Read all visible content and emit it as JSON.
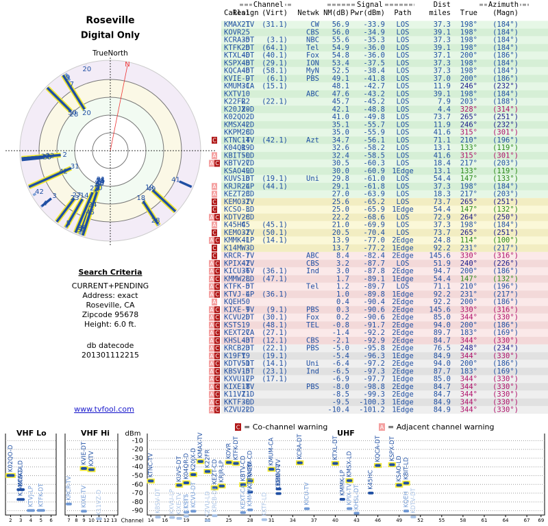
{
  "header": {
    "title": "Roseville",
    "subtitle": "Digital Only",
    "true_north": "TrueNorth",
    "magnetic_north": "N"
  },
  "criteria": {
    "title": "Search Criteria",
    "lines": [
      "CURRENT+PENDING",
      "Address: exact",
      "Roseville, CA",
      "Zipcode 95678",
      "Height: 6.0 ft."
    ],
    "db_label": "db datecode",
    "db_code": "201301112215",
    "link": "www.tvfool.com"
  },
  "table": {
    "groups": {
      "channel": "Channel",
      "signal": "Signal",
      "dist": "Dist",
      "azimuth": "Azimuth"
    },
    "columns": [
      "Callsign",
      "Real",
      "(Virt)",
      "Netwk",
      "NM(dB)",
      "Pwr(dBm)",
      "Path",
      "miles",
      "True",
      "(Magn)"
    ],
    "rows": [
      [
        "KMAX-TV",
        21,
        "(31.1)",
        "CW",
        "56.9",
        "-33.9",
        "LOS",
        "37.3",
        "198°",
        "(184°)",
        null
      ],
      [
        "KOVR",
        25,
        null,
        "CBS",
        "56.0",
        "-34.9",
        "LOS",
        "39.1",
        "198°",
        "(184°)",
        null
      ],
      [
        "KCRA-DT",
        35,
        "(3.1)",
        "NBC",
        "55.6",
        "-35.3",
        "LOS",
        "37.3",
        "198°",
        "(184°)",
        null
      ],
      [
        "KTFK-DT",
        26,
        "(64.1)",
        "Tel",
        "54.9",
        "-36.0",
        "LOS",
        "39.1",
        "198°",
        "(184°)",
        null
      ],
      [
        "KTXL-DT",
        40,
        "(40.1)",
        "Fox",
        "54.8",
        "-36.0",
        "LOS",
        "37.1",
        "200°",
        "(186°)",
        null
      ],
      [
        "KSPX-DT",
        48,
        "(29.1)",
        "ION",
        "53.4",
        "-37.5",
        "LOS",
        "37.3",
        "198°",
        "(184°)",
        null
      ],
      [
        "KQCA-DT",
        46,
        "(58.1)",
        "MyN",
        "52.5",
        "-38.4",
        "LOS",
        "37.3",
        "198°",
        "(184°)",
        null
      ],
      [
        "KVIE-DT",
        9,
        "(6.1)",
        "PBS",
        "49.1",
        "-41.8",
        "LOS",
        "37.0",
        "200°",
        "(186°)",
        null
      ],
      [
        "KMUM-CA",
        31,
        "(15.1)",
        null,
        "48.1",
        "-42.7",
        "LOS",
        "11.9",
        "246°",
        "(232°)",
        null
      ],
      [
        "KXTV",
        10,
        null,
        "ABC",
        "47.6",
        "-43.2",
        "LOS",
        "39.1",
        "198°",
        "(184°)",
        null
      ],
      [
        "K22FR",
        22,
        "(22.1)",
        null,
        "45.7",
        "-45.2",
        "LOS",
        "7.9",
        "203°",
        "(188°)",
        null
      ],
      [
        "K20JX-D",
        20,
        null,
        null,
        "42.1",
        "-48.8",
        "LOS",
        "4.4",
        "328°",
        "(314°)",
        null
      ],
      [
        "K02QO-D",
        2,
        null,
        null,
        "41.0",
        "-49.8",
        "LOS",
        "73.7",
        "265°",
        "(251°)",
        null
      ],
      [
        "KMSX-LD",
        42,
        null,
        null,
        "35.1",
        "-55.7",
        "LOS",
        "11.9",
        "246°",
        "(232°)",
        null
      ],
      [
        "KKPM-CD",
        28,
        null,
        null,
        "35.0",
        "-55.9",
        "LOS",
        "41.6",
        "315°",
        "(301°)",
        null
      ],
      [
        "KTNC-TV",
        14,
        "(42.1)",
        "Azt",
        "34.7",
        "-56.1",
        "LOS",
        "71.1",
        "210°",
        "(196°)",
        [
          "C"
        ]
      ],
      [
        "K04QR-D",
        19,
        null,
        null,
        "32.6",
        "-58.2",
        "LOS",
        "13.1",
        "133°",
        "(119°)",
        null
      ],
      [
        "KBIT-LD",
        50,
        null,
        null,
        "32.4",
        "-58.5",
        "LOS",
        "41.6",
        "315°",
        "(301°)",
        [
          "A"
        ]
      ],
      [
        "KBTV-CD",
        27,
        null,
        null,
        "30.5",
        "-60.3",
        "LOS",
        "18.4",
        "217°",
        "(203°)",
        [
          "A",
          "C"
        ]
      ],
      [
        "KSAO-LD",
        49,
        null,
        null,
        "30.0",
        "-60.9",
        "1Edge",
        "13.1",
        "133°",
        "(119°)",
        null
      ],
      [
        "KUVS-DT",
        18,
        "(19.1)",
        "Uni",
        "29.8",
        "-61.0",
        "LOS",
        "54.4",
        "147°",
        "(133°)",
        null
      ],
      [
        "KRJR-LP",
        24,
        "(44.1)",
        null,
        "29.1",
        "-61.8",
        "LOS",
        "37.3",
        "198°",
        "(184°)",
        [
          "A"
        ]
      ],
      [
        "KEZT-CD",
        23,
        null,
        null,
        "27.0",
        "-63.9",
        "LOS",
        "18.3",
        "217°",
        "(203°)",
        [
          "A"
        ]
      ],
      [
        "KEMO-TV",
        32,
        null,
        null,
        "25.6",
        "-65.2",
        "LOS",
        "73.7",
        "265°",
        "(251°)",
        [
          "C"
        ]
      ],
      [
        "KCSO-LD",
        3,
        null,
        null,
        "25.0",
        "-65.9",
        "1Edge",
        "54.4",
        "147°",
        "(132°)",
        [
          "C"
        ]
      ],
      [
        "KDTV-CD",
        28,
        null,
        null,
        "22.2",
        "-68.6",
        "LOS",
        "72.9",
        "264°",
        "(250°)",
        [
          "A",
          "C"
        ]
      ],
      [
        "K45HC",
        45,
        "(45.1)",
        null,
        "21.0",
        "-69.9",
        "LOS",
        "37.3",
        "198°",
        "(184°)",
        [
          "A"
        ]
      ],
      [
        "KEMO-TV",
        32,
        "(50.1)",
        null,
        "20.5",
        "-70.4",
        "LOS",
        "73.7",
        "265°",
        "(251°)",
        [
          "C"
        ]
      ],
      [
        "KMMK-LP",
        41,
        "(14.1)",
        null,
        "13.9",
        "-77.0",
        "2Edge",
        "24.8",
        "114°",
        "(100°)",
        [
          "A",
          "C"
        ]
      ],
      [
        "K14MW-D",
        3,
        null,
        null,
        "13.7",
        "-77.2",
        "1Edge",
        "92.2",
        "231°",
        "(217°)",
        [
          "C"
        ]
      ],
      [
        "KRCR-TV",
        7,
        null,
        "ABC",
        "8.4",
        "-82.4",
        "2Edge",
        "145.6",
        "330°",
        "(316°)",
        [
          "C"
        ]
      ],
      [
        "KPIX-TV",
        42,
        null,
        "CBS",
        "3.2",
        "-87.7",
        "LOS",
        "51.9",
        "240°",
        "(226°)",
        [
          "A",
          "C"
        ]
      ],
      [
        "KICU-TV",
        36,
        "(36.1)",
        "Ind",
        "3.0",
        "-87.8",
        "2Edge",
        "94.7",
        "200°",
        "(186°)",
        [
          "A",
          "C"
        ]
      ],
      [
        "KMMW-LD",
        28,
        "(47.1)",
        null,
        "1.7",
        "-89.1",
        "1Edge",
        "54.4",
        "147°",
        "(132°)",
        [
          "A",
          "C"
        ]
      ],
      [
        "KTFK-DT",
        5,
        null,
        "Tel",
        "1.2",
        "-89.7",
        "LOS",
        "71.1",
        "210°",
        "(196°)",
        [
          "A",
          "C"
        ]
      ],
      [
        "KTVJ-LP",
        4,
        "(36.1)",
        null,
        "1.0",
        "-89.8",
        "1Edge",
        "92.2",
        "231°",
        "(217°)",
        [
          "A",
          "C"
        ]
      ],
      [
        "KQEH",
        50,
        null,
        null,
        "0.4",
        "-90.4",
        "2Edge",
        "92.2",
        "200°",
        "(186°)",
        [
          "A"
        ]
      ],
      [
        "KIXE-TV",
        9,
        "(9.1)",
        "PBS",
        "0.3",
        "-90.6",
        "2Edge",
        "145.6",
        "330°",
        "(316°)",
        [
          "A",
          "C"
        ]
      ],
      [
        "KCVU-DT",
        20,
        "(30.1)",
        "Fox",
        "0.2",
        "-90.6",
        "2Edge",
        "85.0",
        "344°",
        "(330°)",
        [
          "A",
          "C"
        ]
      ],
      [
        "KSTS",
        19,
        "(48.1)",
        "TEL",
        "-0.8",
        "-91.7",
        "2Edge",
        "94.0",
        "200°",
        "(186°)",
        [
          "A",
          "C"
        ]
      ],
      [
        "KEXT-CA",
        27,
        "(27.1)",
        null,
        "-1.4",
        "-92.2",
        "2Edge",
        "89.7",
        "183°",
        "(169°)",
        [
          "A",
          "C"
        ]
      ],
      [
        "KHSL-DT",
        43,
        "(12.1)",
        "CBS",
        "-2.1",
        "-92.9",
        "2Edge",
        "84.7",
        "344°",
        "(330°)",
        [
          "A",
          "C"
        ]
      ],
      [
        "KRCB-DT",
        23,
        "(22.1)",
        "PBS",
        "-5.0",
        "-95.8",
        "2Edge",
        "76.5",
        "248°",
        "(234°)",
        [
          "A",
          "C"
        ]
      ],
      [
        "K19FY",
        19,
        "(19.1)",
        null,
        "-5.4",
        "-96.3",
        "1Edge",
        "84.9",
        "344°",
        "(330°)",
        [
          "A",
          "C"
        ]
      ],
      [
        "KDTV-DT",
        51,
        "(14.1)",
        "Uni",
        "-6.4",
        "-97.2",
        "2Edge",
        "94.0",
        "200°",
        "(186°)",
        [
          "A",
          "C"
        ]
      ],
      [
        "KBSV-DT",
        15,
        "(23.1)",
        "Ind",
        "-6.5",
        "-97.3",
        "2Edge",
        "87.7",
        "183°",
        "(169°)",
        [
          "A",
          "C"
        ]
      ],
      [
        "KXVU-LP",
        17,
        "(17.1)",
        null,
        "-6.9",
        "-97.7",
        "1Edge",
        "85.0",
        "344°",
        "(330°)",
        [
          "A",
          "C"
        ]
      ],
      [
        "KIXE-TV",
        18,
        null,
        "PBS",
        "-8.0",
        "-98.8",
        "2Edge",
        "84.7",
        "344°",
        "(330°)",
        [
          "A",
          "C"
        ]
      ],
      [
        "K11VZ-D",
        11,
        null,
        null,
        "-8.5",
        "-99.3",
        "2Edge",
        "84.7",
        "344°",
        "(330°)",
        [
          "A",
          "C"
        ]
      ],
      [
        "KKTF-LD",
        30,
        null,
        null,
        "-9.5",
        "-100.3",
        "1Edge",
        "84.9",
        "344°",
        "(330°)",
        [
          "A",
          "C"
        ]
      ],
      [
        "KZVU-LD",
        22,
        null,
        null,
        "-10.4",
        "-101.2",
        "1Edge",
        "84.9",
        "344°",
        "(330°)",
        [
          "A",
          "C"
        ]
      ]
    ]
  },
  "legend": [
    {
      "marker": "C",
      "text": "= Co-channel warning"
    },
    {
      "marker": "A",
      "text": "= Adjacent channel warning"
    }
  ],
  "chart_data": {
    "type": "spectrum",
    "y_label": "dBm",
    "x_label": "Channel",
    "ylim": [
      -5,
      -95
    ],
    "yticks": [
      -10,
      -20,
      -30,
      -40,
      -50,
      -60,
      -70,
      -80,
      -90
    ],
    "grid": true,
    "panels": [
      {
        "name": "VHF Lo",
        "xlim": [
          2,
          6
        ],
        "xticks": [
          2,
          3,
          4,
          5,
          6
        ]
      },
      {
        "name": "VHF Hi",
        "xlim": [
          7,
          13
        ],
        "xticks": [
          7,
          8,
          9,
          10,
          11,
          12,
          13
        ]
      },
      {
        "name": "UHF",
        "xlim": [
          14,
          69
        ],
        "xticks": [
          14,
          16,
          19,
          22,
          25,
          28,
          31,
          34,
          37,
          40,
          43,
          46,
          49,
          52,
          55,
          58,
          61,
          64,
          67,
          69
        ]
      }
    ]
  }
}
